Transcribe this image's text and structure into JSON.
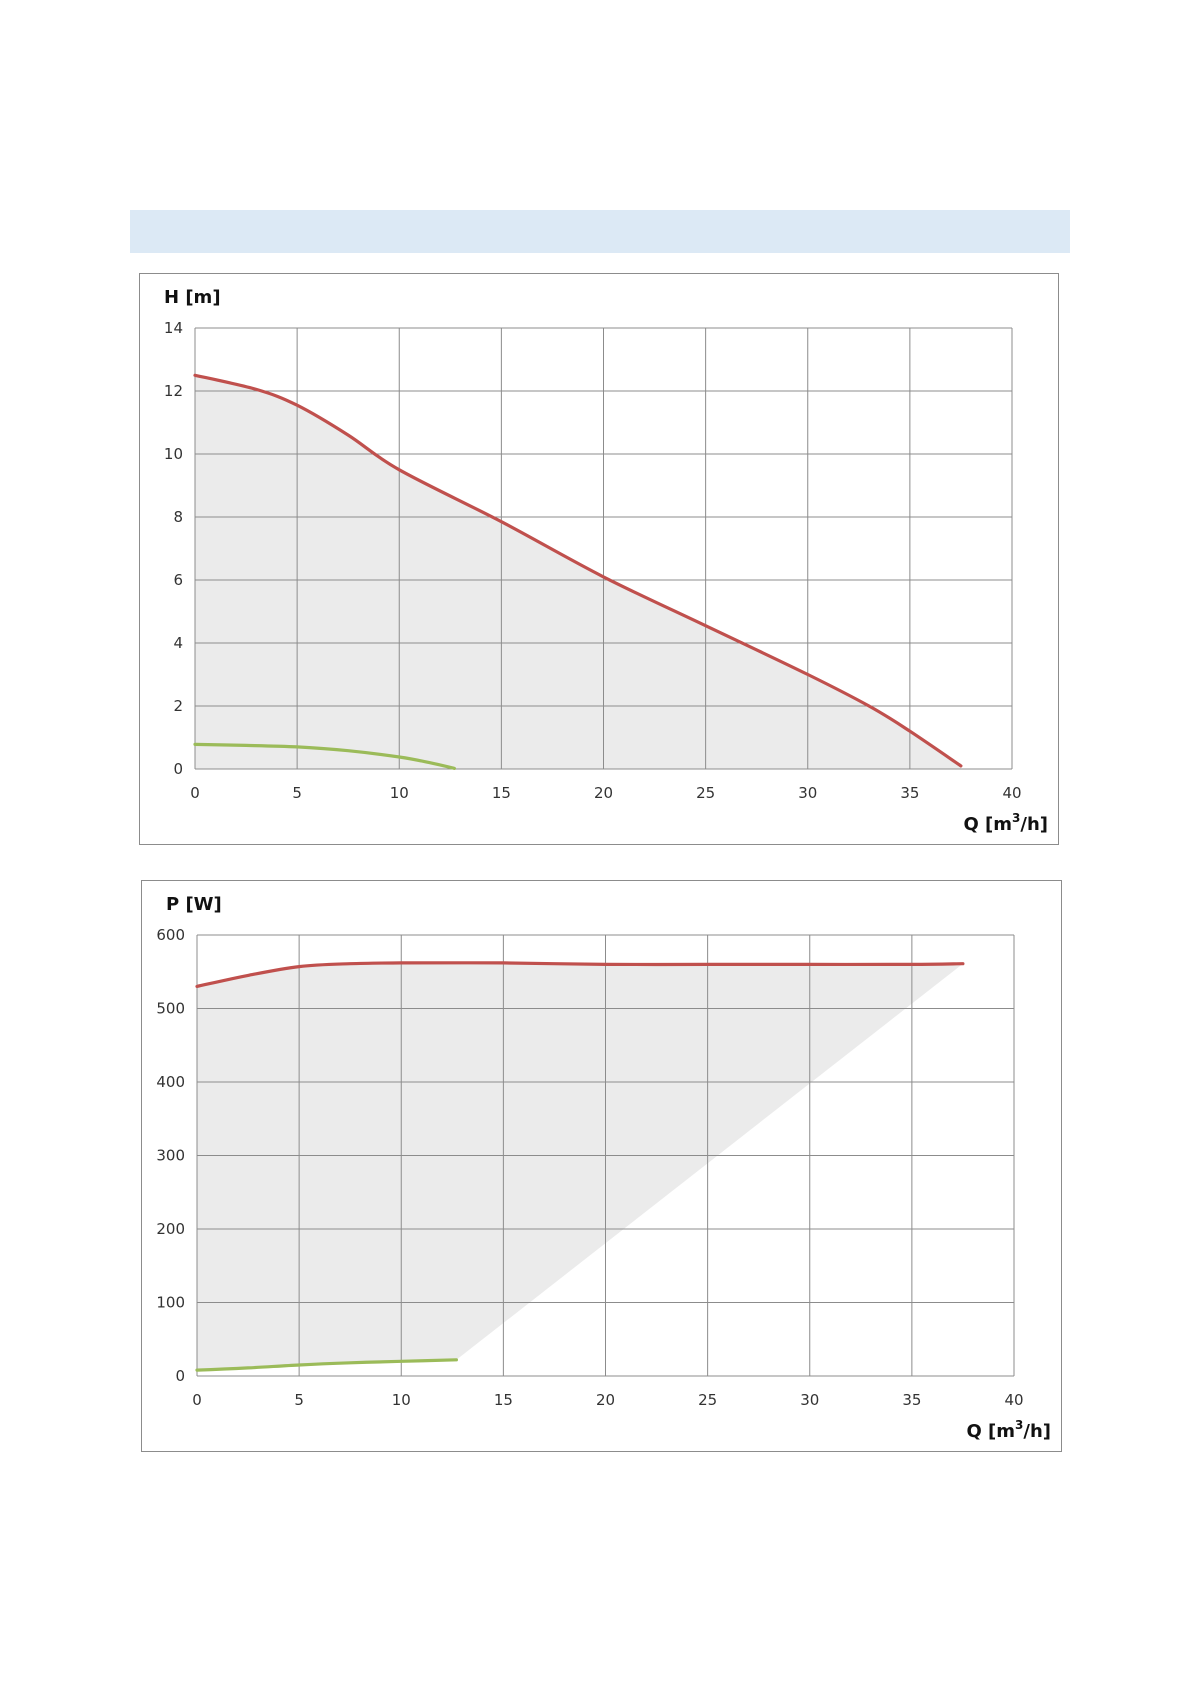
{
  "colors": {
    "band": "#dce9f5",
    "grid": "#8c8c8c",
    "fill": "#ebebeb",
    "max_curve": "#c0504d",
    "min_curve": "#9bbb59"
  },
  "chart_data": [
    {
      "type": "line",
      "ylabel": "H [m]",
      "xlabel_main": "Q [m",
      "xlabel_sup": "3",
      "xlabel_end": "/h]",
      "xlim": [
        0,
        40
      ],
      "ylim": [
        0,
        14
      ],
      "x_ticks": [
        0,
        5,
        10,
        15,
        20,
        25,
        30,
        35,
        40
      ],
      "y_ticks": [
        0,
        2,
        4,
        6,
        8,
        10,
        12,
        14
      ],
      "grid": true,
      "series": [
        {
          "role": "max",
          "color": "#c0504d",
          "points": [
            [
              0,
              12.5
            ],
            [
              3,
              12.05
            ],
            [
              5,
              11.55
            ],
            [
              7.5,
              10.6
            ],
            [
              10,
              9.5
            ],
            [
              15,
              7.85
            ],
            [
              20,
              6.1
            ],
            [
              25,
              4.55
            ],
            [
              30,
              3.0
            ],
            [
              33,
              2.0
            ],
            [
              35,
              1.2
            ],
            [
              37.5,
              0.1
            ]
          ]
        },
        {
          "role": "min",
          "color": "#9bbb59",
          "points": [
            [
              0,
              0.78
            ],
            [
              2.5,
              0.75
            ],
            [
              5,
              0.7
            ],
            [
              7.5,
              0.58
            ],
            [
              10,
              0.38
            ],
            [
              11.5,
              0.2
            ],
            [
              12.7,
              0.02
            ]
          ]
        }
      ],
      "shaded_region": [
        [
          0,
          12.5
        ],
        [
          3,
          12.05
        ],
        [
          5,
          11.55
        ],
        [
          7.5,
          10.6
        ],
        [
          10,
          9.5
        ],
        [
          15,
          7.85
        ],
        [
          20,
          6.1
        ],
        [
          25,
          4.55
        ],
        [
          30,
          3.0
        ],
        [
          33,
          2.0
        ],
        [
          35,
          1.2
        ],
        [
          37.5,
          0.1
        ],
        [
          37.5,
          0
        ],
        [
          0,
          0
        ]
      ]
    },
    {
      "type": "line",
      "ylabel": "P [W]",
      "xlabel_main": "Q [m",
      "xlabel_sup": "3",
      "xlabel_end": "/h]",
      "xlim": [
        0,
        40
      ],
      "ylim": [
        0,
        600
      ],
      "x_ticks": [
        0,
        5,
        10,
        15,
        20,
        25,
        30,
        35,
        40
      ],
      "y_ticks": [
        0,
        100,
        200,
        300,
        400,
        500,
        600
      ],
      "grid": true,
      "series": [
        {
          "role": "max",
          "color": "#c0504d",
          "points": [
            [
              0,
              530
            ],
            [
              2.5,
              545
            ],
            [
              5,
              557
            ],
            [
              7.5,
              561
            ],
            [
              10,
              562
            ],
            [
              15,
              562
            ],
            [
              20,
              560
            ],
            [
              25,
              560
            ],
            [
              30,
              560
            ],
            [
              35,
              560
            ],
            [
              37.5,
              561
            ]
          ]
        },
        {
          "role": "min",
          "color": "#9bbb59",
          "points": [
            [
              0,
              8
            ],
            [
              2.5,
              11
            ],
            [
              5,
              15
            ],
            [
              7.5,
              18
            ],
            [
              10,
              20
            ],
            [
              12.7,
              22
            ]
          ]
        }
      ],
      "shaded_region": [
        [
          0,
          530
        ],
        [
          2.5,
          545
        ],
        [
          5,
          557
        ],
        [
          7.5,
          561
        ],
        [
          10,
          562
        ],
        [
          15,
          562
        ],
        [
          20,
          560
        ],
        [
          25,
          560
        ],
        [
          30,
          560
        ],
        [
          35,
          560
        ],
        [
          37.5,
          561
        ],
        [
          12.7,
          22
        ],
        [
          10,
          20
        ],
        [
          7.5,
          18
        ],
        [
          5,
          15
        ],
        [
          2.5,
          11
        ],
        [
          0,
          8
        ]
      ]
    }
  ]
}
